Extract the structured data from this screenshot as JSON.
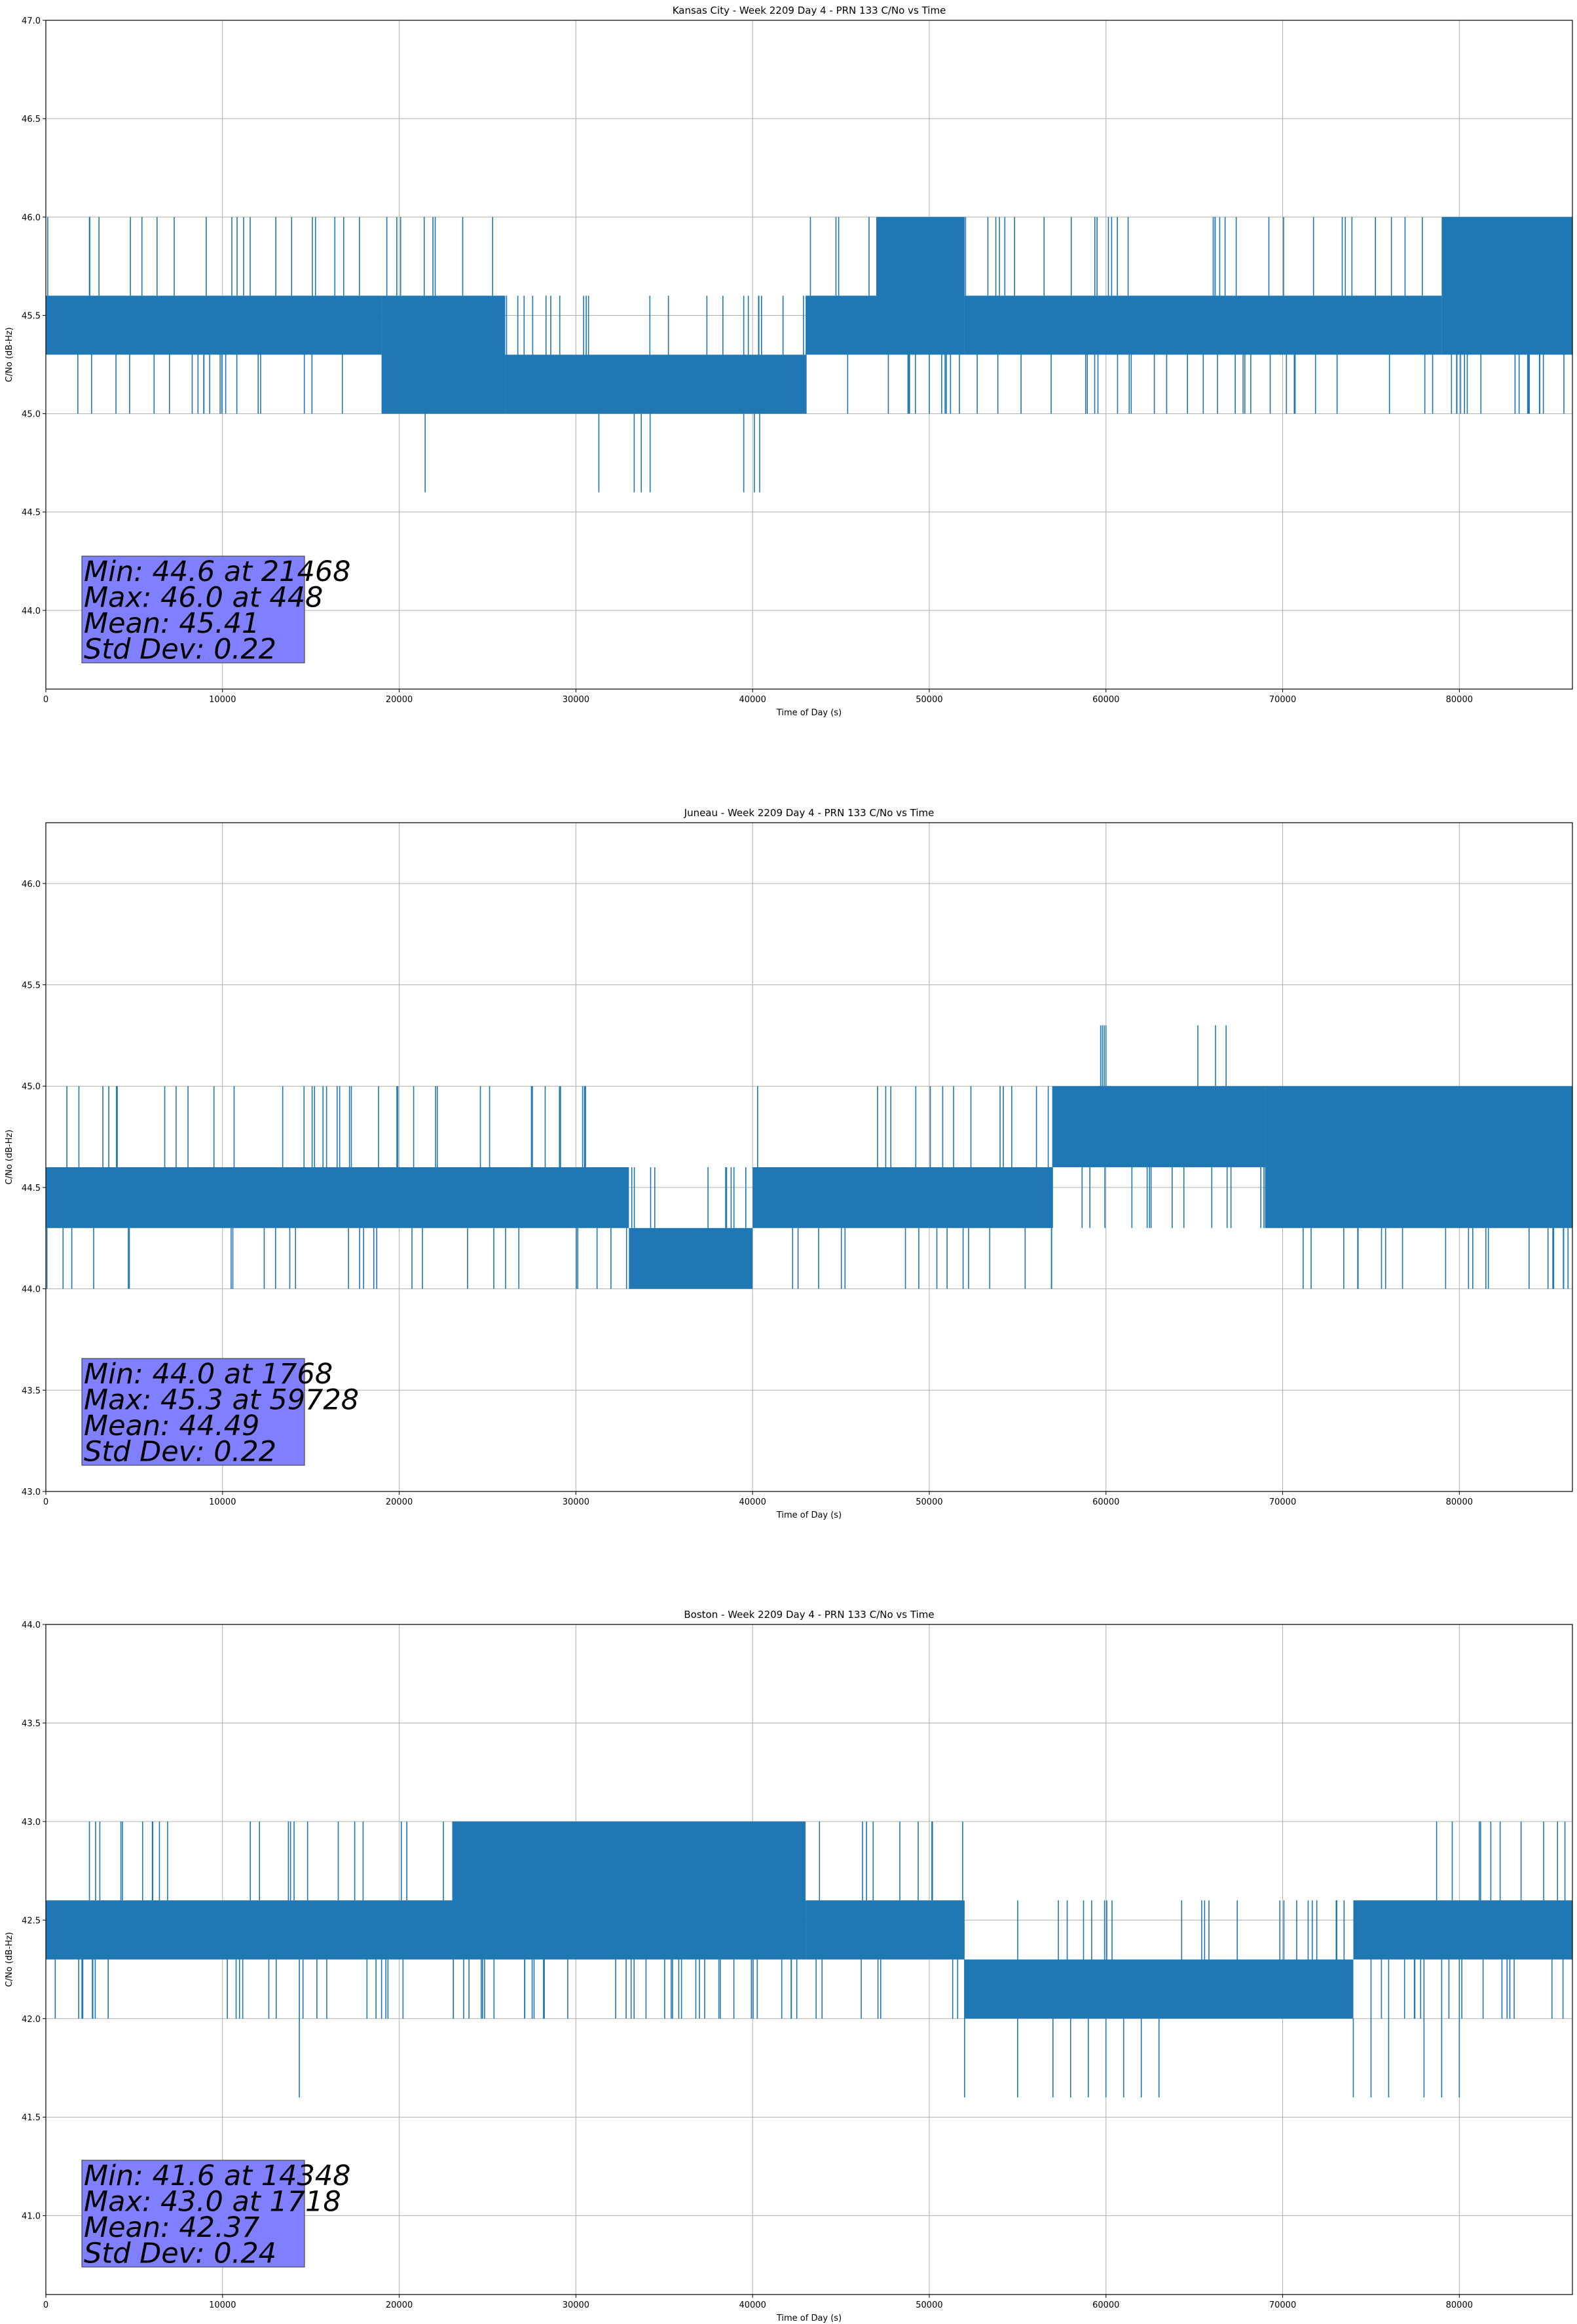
{
  "chart_data": [
    {
      "type": "line",
      "title": "Kansas City - Week 2209 Day 4 - PRN 133 C/No vs Time",
      "xlabel": "Time of Day (s)",
      "ylabel": "C/No (dB-Hz)",
      "xlim": [
        0,
        86400
      ],
      "ylim": [
        43.6,
        47.0
      ],
      "xticks": [
        0,
        10000,
        20000,
        30000,
        40000,
        50000,
        60000,
        70000,
        80000
      ],
      "yticks": [
        "44.0",
        "44.5",
        "45.0",
        "45.5",
        "46.0",
        "46.5",
        "47.0"
      ],
      "grid": true,
      "color": "#1f77b4",
      "levels": [
        44.6,
        45.0,
        45.3,
        45.6,
        46.0
      ],
      "segments": [
        {
          "x": [
            0,
            19000
          ],
          "band": [
            45.3,
            45.6
          ]
        },
        {
          "x": [
            19000,
            26000
          ],
          "band": [
            45.0,
            45.6
          ]
        },
        {
          "x": [
            26000,
            43000
          ],
          "band": [
            45.0,
            45.3
          ]
        },
        {
          "x": [
            43000,
            47000
          ],
          "band": [
            45.3,
            45.6
          ]
        },
        {
          "x": [
            47000,
            52000
          ],
          "band": [
            45.3,
            46.0
          ]
        },
        {
          "x": [
            52000,
            79000
          ],
          "band": [
            45.3,
            45.6
          ]
        },
        {
          "x": [
            79000,
            86400
          ],
          "band": [
            45.3,
            46.0
          ]
        }
      ],
      "low_spikes": [
        21468,
        31300,
        33300,
        33700,
        34200,
        39500,
        40100,
        40400
      ],
      "min_value": 44.6,
      "stats": {
        "line1": "Min: 44.6 at 21468",
        "line2": "Max: 46.0 at 448",
        "line3": "Mean: 45.41",
        "line4": "Std Dev: 0.22"
      }
    },
    {
      "type": "line",
      "title": "Juneau - Week 2209 Day 4 - PRN 133 C/No vs Time",
      "xlabel": "Time of Day (s)",
      "ylabel": "C/No (dB-Hz)",
      "xlim": [
        0,
        86400
      ],
      "ylim": [
        43.0,
        46.3
      ],
      "xticks": [
        0,
        10000,
        20000,
        30000,
        40000,
        50000,
        60000,
        70000,
        80000
      ],
      "yticks": [
        "43.0",
        "43.5",
        "44.0",
        "44.5",
        "45.0",
        "45.5",
        "46.0"
      ],
      "grid": true,
      "color": "#1f77b4",
      "levels": [
        44.0,
        44.3,
        44.6,
        45.0,
        45.3
      ],
      "segments": [
        {
          "x": [
            0,
            33000
          ],
          "band": [
            44.3,
            44.6
          ]
        },
        {
          "x": [
            33000,
            40000
          ],
          "band": [
            44.0,
            44.3
          ]
        },
        {
          "x": [
            40000,
            57000
          ],
          "band": [
            44.3,
            44.6
          ]
        },
        {
          "x": [
            57000,
            69000
          ],
          "band": [
            44.6,
            45.0
          ]
        },
        {
          "x": [
            69000,
            86400
          ],
          "band": [
            44.3,
            45.0
          ]
        }
      ],
      "high_spikes": [
        59700,
        59800,
        59900,
        60000,
        65200,
        66200,
        66800
      ],
      "max_value": 45.3,
      "stats": {
        "line1": "Min: 44.0 at 1768",
        "line2": "Max: 45.3 at 59728",
        "line3": "Mean: 44.49",
        "line4": "Std Dev: 0.22"
      }
    },
    {
      "type": "line",
      "title": "Boston - Week 2209 Day 4 - PRN 133 C/No vs Time",
      "xlabel": "Time of Day (s)",
      "ylabel": "C/No (dB-Hz)",
      "xlim": [
        0,
        86400
      ],
      "ylim": [
        40.6,
        44.0
      ],
      "xticks": [
        0,
        10000,
        20000,
        30000,
        40000,
        50000,
        60000,
        70000,
        80000
      ],
      "yticks": [
        "41.0",
        "41.5",
        "42.0",
        "42.5",
        "43.0",
        "43.5",
        "44.0"
      ],
      "grid": true,
      "color": "#1f77b4",
      "levels": [
        41.6,
        42.0,
        42.3,
        42.6,
        43.0
      ],
      "segments": [
        {
          "x": [
            0,
            23000
          ],
          "band": [
            42.3,
            42.6
          ]
        },
        {
          "x": [
            23000,
            43000
          ],
          "band": [
            42.3,
            43.0
          ]
        },
        {
          "x": [
            43000,
            52000
          ],
          "band": [
            42.3,
            42.6
          ]
        },
        {
          "x": [
            52000,
            74000
          ],
          "band": [
            42.0,
            42.3
          ]
        },
        {
          "x": [
            74000,
            86400
          ],
          "band": [
            42.3,
            42.6
          ]
        }
      ],
      "low_spikes": [
        14348,
        52000,
        55000,
        57000,
        58000,
        59000,
        60000,
        61000,
        62000,
        63000,
        74000,
        75000,
        76000,
        78000,
        79000,
        80000
      ],
      "min_value": 41.6,
      "stats": {
        "line1": "Min: 41.6 at 14348",
        "line2": "Max: 43.0 at 1718",
        "line3": "Mean: 42.37",
        "line4": "Std Dev: 0.24"
      }
    }
  ]
}
